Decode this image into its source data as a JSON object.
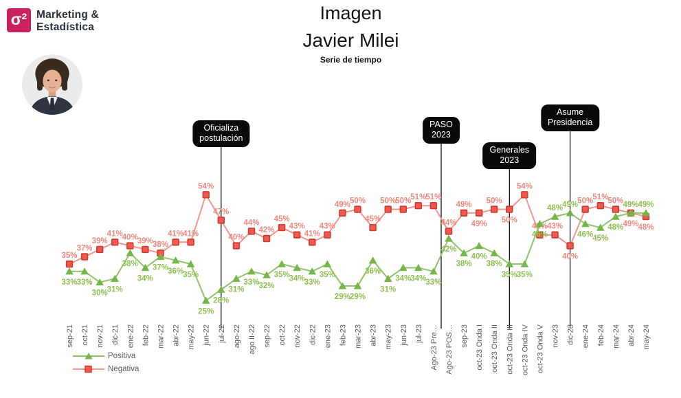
{
  "header": {
    "logo": {
      "icon_glyph": "σ²",
      "line1": "Marketing &",
      "line2": "Estadística"
    },
    "title": "Imagen",
    "subtitle": "Javier Milei",
    "tagline": "Serie de tiempo"
  },
  "legend": {
    "positive_label": "Positiva",
    "negative_label": "Negativa"
  },
  "colors": {
    "brand_pink": "#cb2160",
    "logo_text": "#27323c",
    "title_text": "#141414",
    "axis_text": "#595959",
    "positive_marker": "#74b748",
    "positive_line": "#8cc567",
    "positive_label": "#8cc152",
    "negative_marker": "#ef5a4e",
    "negative_marker_stroke": "#d0392f",
    "negative_line": "#f2958c",
    "negative_label": "#f1887c",
    "annotation_bg": "#0a0a0a",
    "annotation_text": "#ffffff",
    "annotation_line": "#000000"
  },
  "chart_data": {
    "type": "line",
    "title": "Imagen Javier Milei",
    "subtitle": "Serie de tiempo",
    "value_suffix": "%",
    "ylim": [
      20,
      60
    ],
    "grid": false,
    "y_axis_visible": false,
    "x_labels_rotation": -90,
    "legend_position": "bottom-left",
    "categories": [
      "sep-21",
      "oct-21",
      "nov-21",
      "dic-21",
      "ene-22",
      "feb-22",
      "mar-22",
      "abr-22",
      "may-22",
      "jun-22",
      "jul-22",
      "ago-22",
      "ago II-22",
      "sep-22",
      "oct-22",
      "nov-22",
      "dic-22",
      "ene-23",
      "feb-23",
      "mar-23",
      "abr-23",
      "may-23",
      "jun-23",
      "jul-23",
      "Ago-23 Pre…",
      "Ago-23 POS…",
      "sep-23",
      "oct-23 Onda I",
      "oct-23 Onda II",
      "oct-23 Onda III",
      "oct-23 Onda IV",
      "oct-23 Onda V",
      "nov-23",
      "dic-23",
      "ene-24",
      "feb-24",
      "mar-24",
      "abr-24",
      "may-24"
    ],
    "series": [
      {
        "name": "Positiva",
        "marker": "triangle",
        "values": [
          33,
          33,
          30,
          31,
          38,
          34,
          37,
          36,
          35,
          25,
          28,
          31,
          33,
          32,
          35,
          34,
          33,
          35,
          29,
          29,
          36,
          31,
          34,
          34,
          33,
          42,
          38,
          40,
          38,
          35,
          35,
          46,
          48,
          49,
          46,
          45,
          48,
          49,
          49
        ],
        "label_default_side": "below",
        "label_above_indices": [
          32,
          33,
          37,
          38
        ]
      },
      {
        "name": "Negativa",
        "marker": "square",
        "values": [
          35,
          37,
          39,
          41,
          40,
          39,
          38,
          41,
          41,
          54,
          47,
          40,
          44,
          42,
          45,
          43,
          41,
          43,
          49,
          50,
          45,
          50,
          50,
          51,
          51,
          44,
          49,
          49,
          50,
          50,
          54,
          43,
          43,
          40,
          50,
          51,
          50,
          49,
          48
        ],
        "label_default_side": "above",
        "label_below_indices": [
          27,
          29,
          33,
          37,
          38
        ]
      }
    ],
    "annotations": [
      {
        "lines": [
          "Oficializa",
          "postulación"
        ],
        "x_index": 10
      },
      {
        "lines": [
          "PASO",
          "2023"
        ],
        "x_index": 24.5
      },
      {
        "lines": [
          "Generales",
          "2023"
        ],
        "x_index": 29
      },
      {
        "lines": [
          "Asume",
          "Presidencia"
        ],
        "x_index": 33
      }
    ]
  }
}
